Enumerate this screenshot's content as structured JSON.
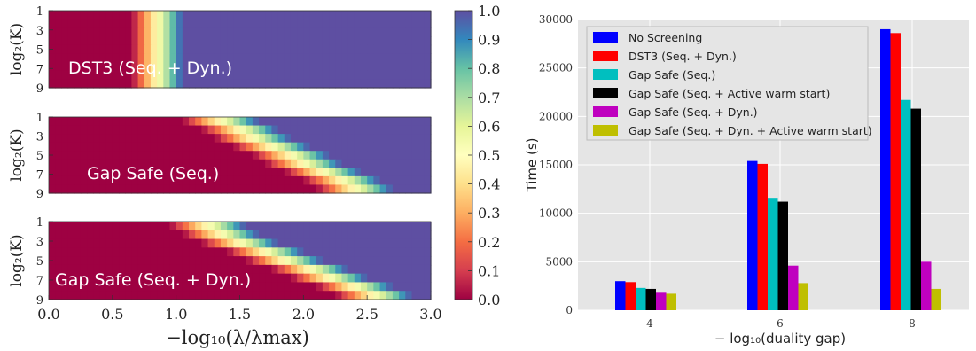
{
  "chart_data": [
    {
      "type": "heatmap",
      "panels": [
        {
          "label": "DST3 (Seq. + Dyn.)",
          "transition": [
            [
              1,
              0.85
            ],
            [
              3,
              0.85
            ],
            [
              5,
              0.85
            ],
            [
              7,
              0.85
            ],
            [
              9,
              0.85
            ]
          ],
          "width": 0.4
        },
        {
          "label": "Gap Safe (Seq.)",
          "transition": [
            [
              1,
              1.35
            ],
            [
              2,
              1.5
            ],
            [
              3,
              1.6
            ],
            [
              4,
              1.75
            ],
            [
              5,
              1.9
            ],
            [
              6,
              2.0
            ],
            [
              7,
              2.15
            ],
            [
              8,
              2.3
            ],
            [
              9,
              2.4
            ]
          ],
          "width": 0.6
        },
        {
          "label": "Gap Safe (Seq. + Dyn.)",
          "transition": [
            [
              1,
              1.25
            ],
            [
              2,
              1.35
            ],
            [
              3,
              1.5
            ],
            [
              4,
              1.7
            ],
            [
              5,
              1.85
            ],
            [
              6,
              2.05
            ],
            [
              7,
              2.2
            ],
            [
              8,
              2.4
            ],
            [
              9,
              2.55
            ]
          ],
          "width": 0.6
        }
      ],
      "ylabel": "log₂(K)",
      "yticks": [
        "1",
        "3",
        "5",
        "7",
        "9"
      ],
      "xlabel": "−log₁₀(λ/λmax)",
      "xticks": [
        "0.0",
        "0.5",
        "1.0",
        "1.5",
        "2.0",
        "2.5",
        "3.0"
      ],
      "xlim": [
        0,
        3
      ],
      "colorbar": {
        "ticks": [
          "0.0",
          "0.1",
          "0.2",
          "0.3",
          "0.4",
          "0.5",
          "0.6",
          "0.7",
          "0.8",
          "0.9",
          "1.0"
        ],
        "range": [
          0,
          1
        ],
        "colormap": "Spectral"
      }
    },
    {
      "type": "bar",
      "categories": [
        "4",
        "6",
        "8"
      ],
      "series": [
        {
          "name": "No Screening",
          "color": "#0000ff",
          "values": [
            3000,
            15400,
            29000
          ]
        },
        {
          "name": "DST3 (Seq. + Dyn.)",
          "color": "#ff0000",
          "values": [
            2900,
            15100,
            28600
          ]
        },
        {
          "name": "Gap Safe (Seq.)",
          "color": "#00bfbf",
          "values": [
            2300,
            11600,
            21700
          ]
        },
        {
          "name": "Gap Safe (Seq. + Active warm start)",
          "color": "#000000",
          "values": [
            2200,
            11200,
            20800
          ]
        },
        {
          "name": "Gap Safe (Seq. + Dyn.)",
          "color": "#bf00bf",
          "values": [
            1800,
            4600,
            5000
          ]
        },
        {
          "name": "Gap Safe (Seq. + Dyn. + Active warm start)",
          "color": "#bfbf00",
          "values": [
            1700,
            2800,
            2200
          ]
        }
      ],
      "ylabel": "Time (s)",
      "xlabel": "− log₁₀(duality gap)",
      "ylim": [
        0,
        30000
      ],
      "yticks": [
        "0",
        "5000",
        "10000",
        "15000",
        "20000",
        "25000",
        "30000"
      ],
      "grid": true,
      "legend": "top-left"
    }
  ]
}
